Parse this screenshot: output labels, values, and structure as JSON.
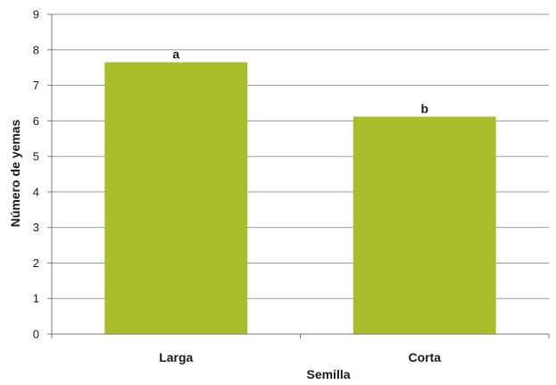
{
  "chart_data": {
    "type": "bar",
    "title": "",
    "xlabel": "Semilla",
    "ylabel": "Número de yemas",
    "categories": [
      "Larga",
      "Corta"
    ],
    "values": [
      7.65,
      6.12
    ],
    "data_labels": [
      "a",
      "b"
    ],
    "ylim": [
      0,
      9
    ],
    "yticks": [
      0,
      1,
      2,
      3,
      4,
      5,
      6,
      7,
      8,
      9
    ],
    "grid": true,
    "legend": "none",
    "colors": {
      "bar": "#a9bd2a",
      "grid": "#9a9a9a",
      "axis": "#7a7a7a"
    }
  }
}
